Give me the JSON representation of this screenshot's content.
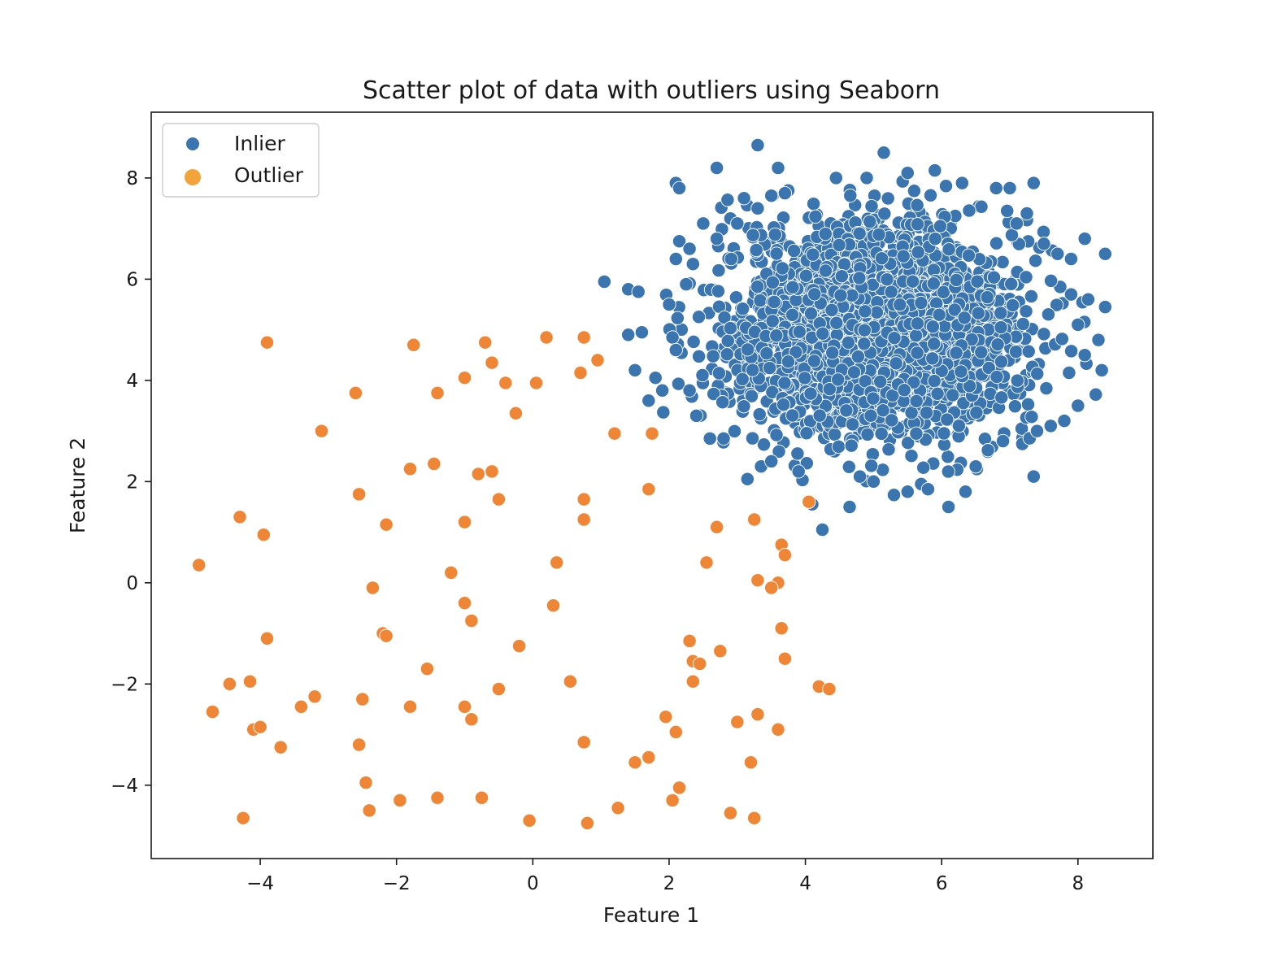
{
  "chart_data": {
    "type": "scatter",
    "title": "Scatter plot of data with outliers using Seaborn",
    "xlabel": "Feature 1",
    "ylabel": "Feature 2",
    "xlim": [
      -5.6,
      9.1
    ],
    "ylim": [
      -5.45,
      9.3
    ],
    "xticks": [
      -4,
      -2,
      0,
      2,
      4,
      6,
      8
    ],
    "yticks": [
      -4,
      -2,
      0,
      2,
      4,
      6,
      8
    ],
    "grid": false,
    "legend_position": "upper-left",
    "colors": {
      "inlier": "#3a75b0",
      "outlier": "#ef8636",
      "legend_outlier": "#f2a33a"
    },
    "series": [
      {
        "name": "Inlier",
        "cluster": {
          "center": [
            5.0,
            5.0
          ],
          "std": 1.0,
          "count": 3000
        },
        "values": [
          [
            3.3,
            8.65
          ],
          [
            5.15,
            8.5
          ],
          [
            2.7,
            8.2
          ],
          [
            3.6,
            8.2
          ],
          [
            5.9,
            8.15
          ],
          [
            5.5,
            8.1
          ],
          [
            4.9,
            8.0
          ],
          [
            7.35,
            7.9
          ],
          [
            2.1,
            7.9
          ],
          [
            2.15,
            7.8
          ],
          [
            4.45,
            8.0
          ],
          [
            3.1,
            7.6
          ],
          [
            3.5,
            7.65
          ],
          [
            3.7,
            7.7
          ],
          [
            6.3,
            7.9
          ],
          [
            6.8,
            7.8
          ],
          [
            7.0,
            7.8
          ],
          [
            7.25,
            7.3
          ],
          [
            7.1,
            7.1
          ],
          [
            2.5,
            7.1
          ],
          [
            2.9,
            7.2
          ],
          [
            7.5,
            6.7
          ],
          [
            7.9,
            6.4
          ],
          [
            8.1,
            6.8
          ],
          [
            8.4,
            6.5
          ],
          [
            7.7,
            6.5
          ],
          [
            2.15,
            6.75
          ],
          [
            2.1,
            6.4
          ],
          [
            2.3,
            6.6
          ],
          [
            1.05,
            5.95
          ],
          [
            1.4,
            5.8
          ],
          [
            1.55,
            5.75
          ],
          [
            2.0,
            5.5
          ],
          [
            1.6,
            4.95
          ],
          [
            1.4,
            4.9
          ],
          [
            2.05,
            4.85
          ],
          [
            2.1,
            4.6
          ],
          [
            1.5,
            4.2
          ],
          [
            1.8,
            4.05
          ],
          [
            1.7,
            3.6
          ],
          [
            1.9,
            3.8
          ],
          [
            2.3,
            3.8
          ],
          [
            2.4,
            3.3
          ],
          [
            2.6,
            2.85
          ],
          [
            2.8,
            2.85
          ],
          [
            3.15,
            2.05
          ],
          [
            3.35,
            2.3
          ],
          [
            3.5,
            2.4
          ],
          [
            3.9,
            2.2
          ],
          [
            4.1,
            1.55
          ],
          [
            4.25,
            1.05
          ],
          [
            4.65,
            1.5
          ],
          [
            4.8,
            2.1
          ],
          [
            5.0,
            2.0
          ],
          [
            5.5,
            1.8
          ],
          [
            5.7,
            1.95
          ],
          [
            6.1,
            1.5
          ],
          [
            6.35,
            1.8
          ],
          [
            5.8,
            1.85
          ],
          [
            6.5,
            2.3
          ],
          [
            7.35,
            2.1
          ],
          [
            7.6,
            3.1
          ],
          [
            7.8,
            3.2
          ],
          [
            8.0,
            3.5
          ],
          [
            8.35,
            4.2
          ],
          [
            8.1,
            4.5
          ],
          [
            8.3,
            4.8
          ],
          [
            8.0,
            5.1
          ],
          [
            8.15,
            5.6
          ],
          [
            8.4,
            5.45
          ],
          [
            7.9,
            5.7
          ],
          [
            7.4,
            3.0
          ],
          [
            6.9,
            2.8
          ],
          [
            2.25,
            5.9
          ],
          [
            2.35,
            6.3
          ],
          [
            2.7,
            6.8
          ],
          [
            3.0,
            7.1
          ],
          [
            3.3,
            7.4
          ]
        ]
      },
      {
        "name": "Outlier",
        "values": [
          [
            -3.9,
            4.75
          ],
          [
            -1.75,
            4.7
          ],
          [
            -0.7,
            4.75
          ],
          [
            0.2,
            4.85
          ],
          [
            0.75,
            4.85
          ],
          [
            0.95,
            4.4
          ],
          [
            0.7,
            4.15
          ],
          [
            -0.6,
            4.35
          ],
          [
            -1.0,
            4.05
          ],
          [
            -0.4,
            3.95
          ],
          [
            0.05,
            3.95
          ],
          [
            -2.6,
            3.75
          ],
          [
            -1.4,
            3.75
          ],
          [
            -0.25,
            3.35
          ],
          [
            -3.1,
            3.0
          ],
          [
            1.2,
            2.95
          ],
          [
            1.75,
            2.95
          ],
          [
            -1.8,
            2.25
          ],
          [
            -1.45,
            2.35
          ],
          [
            -0.8,
            2.15
          ],
          [
            -0.6,
            2.2
          ],
          [
            1.7,
            1.85
          ],
          [
            -2.55,
            1.75
          ],
          [
            -0.5,
            1.65
          ],
          [
            0.75,
            1.65
          ],
          [
            -4.3,
            1.3
          ],
          [
            -2.15,
            1.15
          ],
          [
            -1.0,
            1.2
          ],
          [
            0.75,
            1.25
          ],
          [
            3.25,
            1.25
          ],
          [
            4.05,
            1.6
          ],
          [
            -3.95,
            0.95
          ],
          [
            2.7,
            1.1
          ],
          [
            3.65,
            0.75
          ],
          [
            3.7,
            0.55
          ],
          [
            -4.9,
            0.35
          ],
          [
            0.35,
            0.4
          ],
          [
            2.55,
            0.4
          ],
          [
            -1.2,
            0.2
          ],
          [
            3.3,
            0.05
          ],
          [
            3.6,
            0.0
          ],
          [
            3.5,
            -0.1
          ],
          [
            -2.35,
            -0.1
          ],
          [
            -1.0,
            -0.4
          ],
          [
            0.3,
            -0.45
          ],
          [
            -0.9,
            -0.75
          ],
          [
            3.65,
            -0.9
          ],
          [
            -3.9,
            -1.1
          ],
          [
            -2.2,
            -1.0
          ],
          [
            -2.15,
            -1.05
          ],
          [
            -0.2,
            -1.25
          ],
          [
            2.3,
            -1.15
          ],
          [
            2.75,
            -1.35
          ],
          [
            2.35,
            -1.55
          ],
          [
            2.45,
            -1.6
          ],
          [
            3.7,
            -1.5
          ],
          [
            -1.55,
            -1.7
          ],
          [
            -4.15,
            -1.95
          ],
          [
            -4.45,
            -2.0
          ],
          [
            2.35,
            -1.95
          ],
          [
            0.55,
            -1.95
          ],
          [
            -0.5,
            -2.1
          ],
          [
            4.2,
            -2.05
          ],
          [
            4.35,
            -2.1
          ],
          [
            -3.2,
            -2.25
          ],
          [
            -2.5,
            -2.3
          ],
          [
            -4.7,
            -2.55
          ],
          [
            -3.4,
            -2.45
          ],
          [
            -1.8,
            -2.45
          ],
          [
            -1.0,
            -2.45
          ],
          [
            -0.9,
            -2.7
          ],
          [
            1.95,
            -2.65
          ],
          [
            3.3,
            -2.6
          ],
          [
            3.0,
            -2.75
          ],
          [
            2.1,
            -2.95
          ],
          [
            3.6,
            -2.9
          ],
          [
            -4.1,
            -2.9
          ],
          [
            -4.0,
            -2.85
          ],
          [
            -3.7,
            -3.25
          ],
          [
            -2.55,
            -3.2
          ],
          [
            0.75,
            -3.15
          ],
          [
            1.7,
            -3.45
          ],
          [
            1.5,
            -3.55
          ],
          [
            3.2,
            -3.55
          ],
          [
            -2.45,
            -3.95
          ],
          [
            2.15,
            -4.05
          ],
          [
            2.05,
            -4.3
          ],
          [
            -1.95,
            -4.3
          ],
          [
            -1.4,
            -4.25
          ],
          [
            -0.75,
            -4.25
          ],
          [
            -2.4,
            -4.5
          ],
          [
            1.25,
            -4.45
          ],
          [
            2.9,
            -4.55
          ],
          [
            -4.25,
            -4.65
          ],
          [
            3.25,
            -4.65
          ],
          [
            -0.05,
            -4.7
          ],
          [
            0.8,
            -4.75
          ]
        ]
      }
    ]
  }
}
